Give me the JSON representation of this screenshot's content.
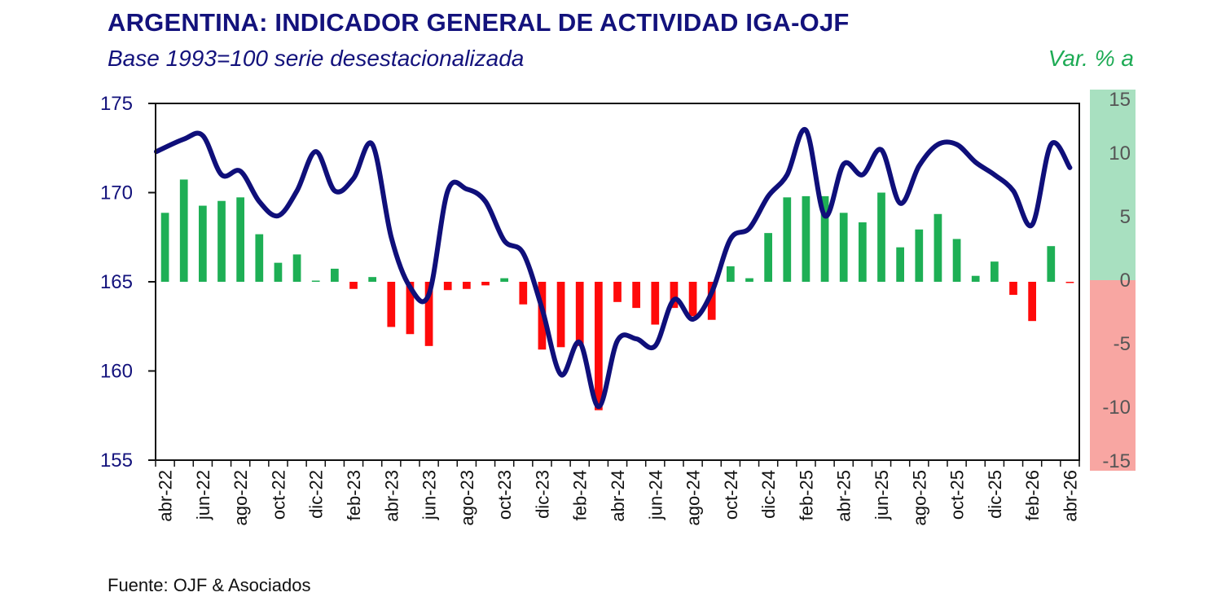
{
  "title": "ARGENTINA: INDICADOR GENERAL DE ACTIVIDAD IGA-OJF",
  "subtitle": "Base 1993=100 serie desestacionalizada",
  "right_axis_title": "Var. % a",
  "source": "Fuente: OJF & Asociados",
  "colors": {
    "line": "#0f0f7a",
    "bar_positive": "#1eaf55",
    "bar_negative": "#ff0a0a",
    "band_positive": "#a8e0c0",
    "band_negative": "#f8a6a2",
    "title": "#13127c",
    "right_title": "#1eab55"
  },
  "chart_data": {
    "type": "bar+line",
    "categories": [
      "abr-22",
      "may-22",
      "jun-22",
      "jul-22",
      "ago-22",
      "sep-22",
      "oct-22",
      "nov-22",
      "dic-22",
      "ene-23",
      "feb-23",
      "mar-23",
      "abr-23",
      "may-23",
      "jun-23",
      "jul-23",
      "ago-23",
      "sep-23",
      "oct-23",
      "nov-23",
      "dic-23",
      "ene-24",
      "feb-24",
      "mar-24",
      "abr-24",
      "may-24",
      "jun-24",
      "jul-24",
      "ago-24",
      "sep-24",
      "oct-24",
      "nov-24",
      "dic-24",
      "ene-25",
      "feb-25",
      "mar-25",
      "abr-25",
      "may-25",
      "jun-25",
      "jul-25",
      "ago-25",
      "sep-25",
      "oct-25",
      "nov-25",
      "dic-25",
      "ene-26",
      "feb-26",
      "mar-26",
      "abr-26"
    ],
    "x_tick_labels": [
      "abr-22",
      "jun-22",
      "ago-22",
      "oct-22",
      "dic-22",
      "feb-23",
      "abr-23",
      "jun-23",
      "ago-23",
      "oct-23",
      "dic-23",
      "feb-24",
      "abr-24",
      "jun-24",
      "ago-24",
      "oct-24",
      "dic-24",
      "feb-25",
      "abr-25",
      "jun-25",
      "ago-25",
      "oct-25",
      "dic-25",
      "feb-26",
      "abr-26"
    ],
    "series": [
      {
        "type": "line",
        "axis": "left",
        "values": [
          172.3,
          173.0,
          173.2,
          171.0,
          171.2,
          169.5,
          168.7,
          170.1,
          172.3,
          170.1,
          170.8,
          172.7,
          167.5,
          164.7,
          164.3,
          170.1,
          170.2,
          169.5,
          167.3,
          166.6,
          163.5,
          159.8,
          161.6,
          158.0,
          161.7,
          161.8,
          161.4,
          164.0,
          162.9,
          164.4,
          167.4,
          168.0,
          169.8,
          171.0,
          173.5,
          168.7,
          171.6,
          171.0,
          172.4,
          169.4,
          171.5,
          172.7,
          172.7,
          171.7,
          171.0,
          170.1,
          168.2,
          172.7,
          171.4
        ]
      },
      {
        "type": "bar",
        "axis": "right",
        "values": [
          5.8,
          8.6,
          6.4,
          6.8,
          7.1,
          4.0,
          1.6,
          2.3,
          0.1,
          1.1,
          -0.6,
          0.4,
          -3.8,
          -4.4,
          -5.4,
          -0.7,
          -0.6,
          -0.3,
          0.3,
          -1.9,
          -5.7,
          -5.5,
          -5.4,
          -10.8,
          -1.7,
          -2.2,
          -3.6,
          -2.2,
          -2.9,
          -3.2,
          1.3,
          0.3,
          4.1,
          7.1,
          7.2,
          7.2,
          5.8,
          5.0,
          7.5,
          2.9,
          4.4,
          5.7,
          3.6,
          0.5,
          1.7,
          -1.1,
          -3.3,
          3.0,
          -0.1
        ]
      }
    ],
    "y_left": {
      "ylim": [
        155,
        175
      ],
      "ticks": [
        "155",
        "160",
        "165",
        "170",
        "175"
      ]
    },
    "y_right": {
      "ylim": [
        -15,
        15
      ],
      "ticks": [
        "-15",
        "-10",
        "-5",
        "0",
        "5",
        "10",
        "15"
      ]
    },
    "grid": false,
    "legend": "none"
  }
}
